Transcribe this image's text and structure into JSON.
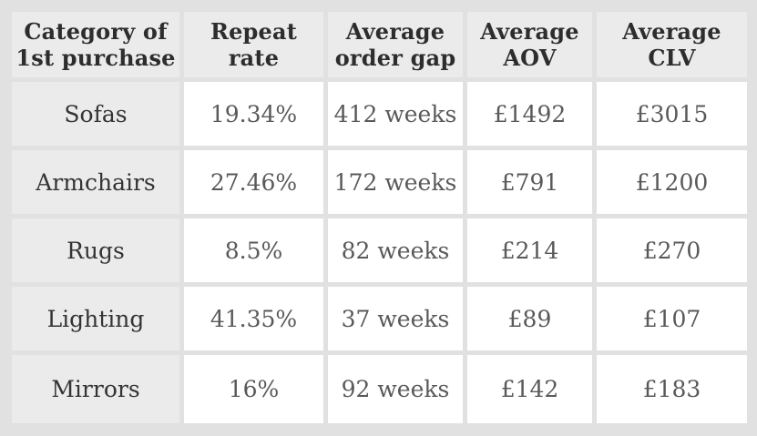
{
  "colors": {
    "page_background": "#e1e1e1",
    "header_cell_background": "#ebebeb",
    "data_cell_background": "#ffffff",
    "header_text": "#2d2d2d",
    "category_text": "#343434",
    "data_text": "#595959"
  },
  "table": {
    "headers": [
      {
        "line1": "Category of",
        "line2": "1st purchase"
      },
      {
        "line1": "Repeat",
        "line2": "rate"
      },
      {
        "line1": "Average",
        "line2": "order gap"
      },
      {
        "line1": "Average",
        "line2": "AOV"
      },
      {
        "line1": "Average",
        "line2": "CLV"
      }
    ],
    "rows": [
      {
        "category": "Sofas",
        "repeat_rate": "19.34%",
        "order_gap": "412 weeks",
        "aov": "£1492",
        "clv": "£3015"
      },
      {
        "category": "Armchairs",
        "repeat_rate": "27.46%",
        "order_gap": "172 weeks",
        "aov": "£791",
        "clv": "£1200"
      },
      {
        "category": "Rugs",
        "repeat_rate": "8.5%",
        "order_gap": "82 weeks",
        "aov": "£214",
        "clv": "£270"
      },
      {
        "category": "Lighting",
        "repeat_rate": "41.35%",
        "order_gap": "37 weeks",
        "aov": "£89",
        "clv": "£107"
      },
      {
        "category": "Mirrors",
        "repeat_rate": "16%",
        "order_gap": "92 weeks",
        "aov": "£142",
        "clv": "£183"
      }
    ]
  }
}
